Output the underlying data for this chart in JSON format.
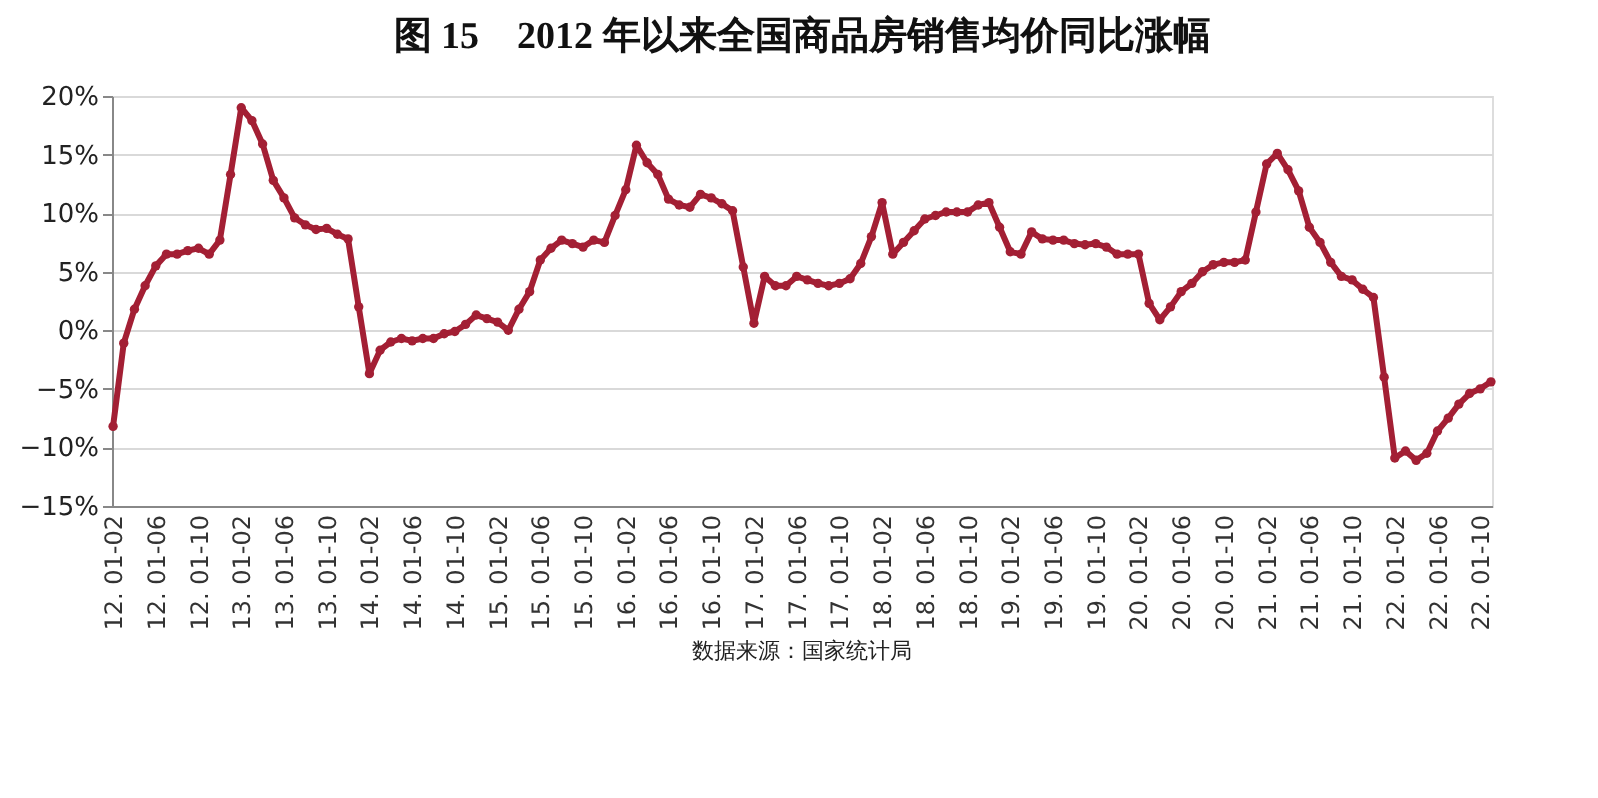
{
  "chart_data": {
    "type": "line",
    "title": "图 15　2012 年以来全国商品房销售均价同比涨幅",
    "categories": [
      "12. 01-02",
      null,
      null,
      null,
      "12. 01-06",
      null,
      null,
      null,
      "12. 01-10",
      null,
      null,
      null,
      "13. 01-02",
      null,
      null,
      null,
      "13. 01-06",
      null,
      null,
      null,
      "13. 01-10",
      null,
      null,
      null,
      "14. 01-02",
      null,
      null,
      null,
      "14. 01-06",
      null,
      null,
      null,
      "14. 01-10",
      null,
      null,
      null,
      "15. 01-02",
      null,
      null,
      null,
      "15. 01-06",
      null,
      null,
      null,
      "15. 01-10",
      null,
      null,
      null,
      "16. 01-02",
      null,
      null,
      null,
      "16. 01-06",
      null,
      null,
      null,
      "16. 01-10",
      null,
      null,
      null,
      "17. 01-02",
      null,
      null,
      null,
      "17. 01-06",
      null,
      null,
      null,
      "17. 01-10",
      null,
      null,
      null,
      "18. 01-02",
      null,
      null,
      null,
      "18. 01-06",
      null,
      null,
      null,
      "18. 01-10",
      null,
      null,
      null,
      "19. 01-02",
      null,
      null,
      null,
      "19. 01-06",
      null,
      null,
      null,
      "19. 01-10",
      null,
      null,
      null,
      "20. 01-02",
      null,
      null,
      null,
      "20. 01-06",
      null,
      null,
      null,
      "20. 01-10",
      null,
      null,
      null,
      "21. 01-02",
      null,
      null,
      null,
      "21. 01-06",
      null,
      null,
      null,
      "21. 01-10",
      null,
      null,
      null,
      "22. 01-02",
      null,
      null,
      null,
      "22. 01-06",
      null,
      null,
      null,
      "22. 01-10",
      null
    ],
    "series": [
      {
        "color": "#a31f34",
        "values": [
          -8.2,
          -1.1,
          1.8,
          3.8,
          5.5,
          6.5,
          6.5,
          6.8,
          7.0,
          6.5,
          7.7,
          13.3,
          19.0,
          17.9,
          15.9,
          12.8,
          11.3,
          9.6,
          9.0,
          8.6,
          8.7,
          8.2,
          7.8,
          2.0,
          -3.7,
          -1.7,
          -1.0,
          -0.7,
          -0.9,
          -0.7,
          -0.7,
          -0.3,
          -0.1,
          0.5,
          1.3,
          1.0,
          0.7,
          0.0,
          1.8,
          3.3,
          6.0,
          7.0,
          7.7,
          7.4,
          7.1,
          7.7,
          7.5,
          9.8,
          12.0,
          15.8,
          14.3,
          13.3,
          11.2,
          10.7,
          10.5,
          11.6,
          11.3,
          10.8,
          10.2,
          5.4,
          0.6,
          4.6,
          3.8,
          3.8,
          4.6,
          4.3,
          4.0,
          3.8,
          4.0,
          4.4,
          5.7,
          8.0,
          10.9,
          6.5,
          7.5,
          8.5,
          9.5,
          9.8,
          10.1,
          10.1,
          10.1,
          10.7,
          10.9,
          8.8,
          6.7,
          6.5,
          8.4,
          7.8,
          7.7,
          7.7,
          7.4,
          7.3,
          7.4,
          7.1,
          6.5,
          6.5,
          6.5,
          2.3,
          0.9,
          2.0,
          3.3,
          4.0,
          5.0,
          5.6,
          5.8,
          5.8,
          6.0,
          10.1,
          14.2,
          15.1,
          13.7,
          11.9,
          8.8,
          7.5,
          5.8,
          4.6,
          4.3,
          3.5,
          2.8,
          -4.0,
          -10.9,
          -10.3,
          -11.1,
          -10.5,
          -8.6,
          -7.5,
          -6.3,
          -5.4,
          -5.0,
          -4.4
        ]
      }
    ],
    "ylim": [
      -15,
      20
    ],
    "yticks": [
      {
        "value": -15,
        "label": "−15%"
      },
      {
        "value": -10,
        "label": "−10%"
      },
      {
        "value": -5,
        "label": "−5%"
      },
      {
        "value": 0,
        "label": "0%"
      },
      {
        "value": 5,
        "label": "5%"
      },
      {
        "value": 10,
        "label": "10%"
      },
      {
        "value": 15,
        "label": "15%"
      },
      {
        "value": 20,
        "label": "20%"
      }
    ],
    "grid": "y",
    "marker": "circle",
    "line_style": "solid",
    "annotations": [
      "数据来源：国家统计局"
    ]
  }
}
